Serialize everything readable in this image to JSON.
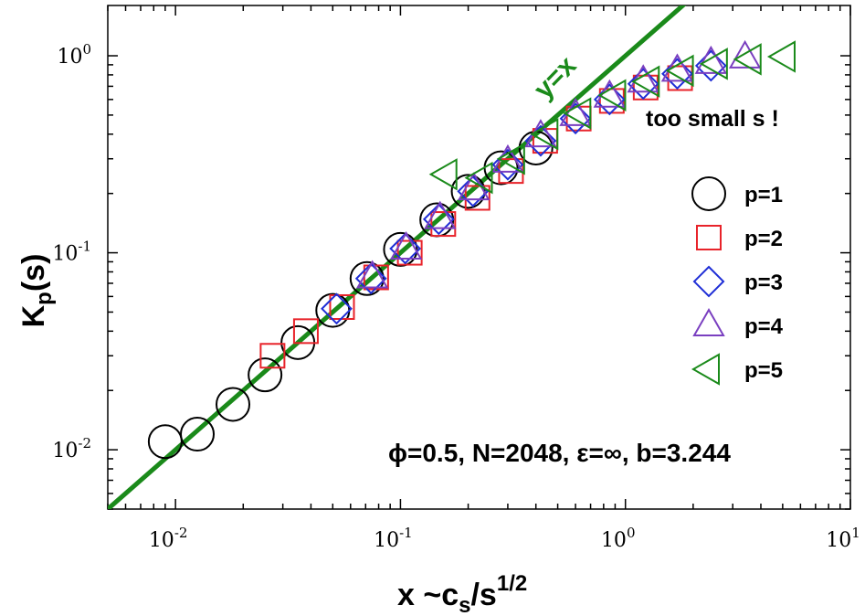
{
  "chart_data": {
    "type": "scatter",
    "x_scale": "log",
    "y_scale": "log",
    "xlim": [
      0.005,
      10
    ],
    "ylim": [
      0.005,
      1.8
    ],
    "x_tick_labels": [
      {
        "value": 0.01,
        "base": "10",
        "exp": "-2"
      },
      {
        "value": 0.1,
        "base": "10",
        "exp": "-1"
      },
      {
        "value": 1,
        "base": "10",
        "exp": "0"
      },
      {
        "value": 10,
        "base": "10",
        "exp": "1"
      }
    ],
    "y_tick_labels": [
      {
        "value": 0.01,
        "base": "10",
        "exp": "-2"
      },
      {
        "value": 0.1,
        "base": "10",
        "exp": "-1"
      },
      {
        "value": 1,
        "base": "10",
        "exp": "0"
      }
    ],
    "xlabel": {
      "main": "x ~c",
      "sub": "s",
      "mid": "/s",
      "sup": "1/2"
    },
    "ylabel": {
      "main": "K",
      "sub": "p",
      "tail": "(s)"
    },
    "reference_line": {
      "label": "y=x",
      "color": "#1a8a1a",
      "from": [
        0.005,
        0.005
      ],
      "to": [
        2.5,
        2.5
      ]
    },
    "annotations": {
      "warning": "too small s !",
      "params": "ϕ=0.5, N=2048, ε=∞, b=3.244"
    },
    "series": [
      {
        "name": "p=1",
        "marker": "circle",
        "color": "#000000",
        "points": [
          [
            0.009,
            0.011
          ],
          [
            0.0125,
            0.012
          ],
          [
            0.018,
            0.017
          ],
          [
            0.025,
            0.024
          ],
          [
            0.035,
            0.035
          ],
          [
            0.05,
            0.051
          ],
          [
            0.071,
            0.074
          ],
          [
            0.1,
            0.104
          ],
          [
            0.145,
            0.147
          ],
          [
            0.2,
            0.205
          ],
          [
            0.28,
            0.27
          ],
          [
            0.4,
            0.34
          ]
        ]
      },
      {
        "name": "p=2",
        "marker": "square",
        "color": "#e8232a",
        "points": [
          [
            0.027,
            0.03
          ],
          [
            0.038,
            0.04
          ],
          [
            0.055,
            0.053
          ],
          [
            0.078,
            0.075
          ],
          [
            0.11,
            0.1
          ],
          [
            0.155,
            0.14
          ],
          [
            0.22,
            0.19
          ],
          [
            0.31,
            0.26
          ],
          [
            0.44,
            0.37
          ],
          [
            0.62,
            0.48
          ],
          [
            0.87,
            0.59
          ],
          [
            1.23,
            0.69
          ],
          [
            1.75,
            0.77
          ]
        ]
      },
      {
        "name": "p=3",
        "marker": "diamond",
        "color": "#1f2ed6",
        "points": [
          [
            0.052,
            0.052
          ],
          [
            0.074,
            0.074
          ],
          [
            0.105,
            0.105
          ],
          [
            0.148,
            0.148
          ],
          [
            0.21,
            0.205
          ],
          [
            0.3,
            0.28
          ],
          [
            0.42,
            0.37
          ],
          [
            0.6,
            0.48
          ],
          [
            0.85,
            0.6
          ],
          [
            1.2,
            0.72
          ],
          [
            1.7,
            0.81
          ],
          [
            2.4,
            0.89
          ]
        ]
      },
      {
        "name": "p=4",
        "marker": "triangle-up",
        "color": "#7a3fc0",
        "points": [
          [
            0.075,
            0.075
          ],
          [
            0.106,
            0.105
          ],
          [
            0.15,
            0.15
          ],
          [
            0.212,
            0.21
          ],
          [
            0.3,
            0.29
          ],
          [
            0.42,
            0.39
          ],
          [
            0.6,
            0.5
          ],
          [
            0.85,
            0.62
          ],
          [
            1.2,
            0.74
          ],
          [
            1.7,
            0.84
          ],
          [
            2.4,
            0.92
          ],
          [
            3.4,
            0.98
          ]
        ]
      },
      {
        "name": "p=5",
        "marker": "triangle-left",
        "color": "#1a8a1a",
        "points": [
          [
            0.16,
            0.25
          ],
          [
            0.23,
            0.24
          ],
          [
            0.32,
            0.3
          ],
          [
            0.45,
            0.4
          ],
          [
            0.63,
            0.51
          ],
          [
            0.9,
            0.63
          ],
          [
            1.27,
            0.74
          ],
          [
            1.8,
            0.84
          ],
          [
            2.55,
            0.91
          ],
          [
            3.6,
            0.96
          ],
          [
            5.1,
            0.99
          ]
        ]
      }
    ]
  }
}
